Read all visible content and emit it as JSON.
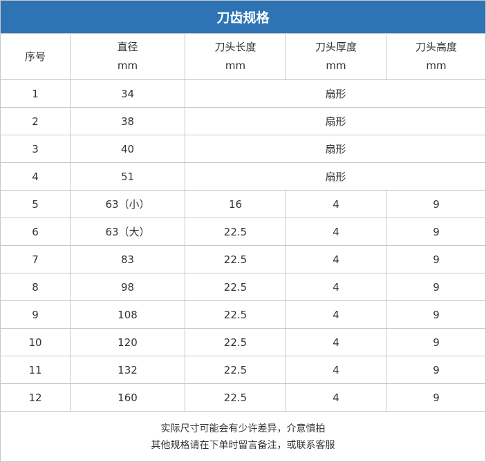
{
  "title": "刀齿规格",
  "headers": [
    [
      "序号",
      ""
    ],
    [
      "直径",
      "mm"
    ],
    [
      "刀头长度",
      "mm"
    ],
    [
      "刀头厚度",
      "mm"
    ],
    [
      "刀头高度",
      "mm"
    ]
  ],
  "rows": [
    [
      "1",
      "34",
      "扇形"
    ],
    [
      "2",
      "38",
      "扇形"
    ],
    [
      "3",
      "40",
      "扇形"
    ],
    [
      "4",
      "51",
      "扇形"
    ],
    [
      "5",
      "63（小）",
      "16",
      "4",
      "9"
    ],
    [
      "6",
      "63（大）",
      "22.5",
      "4",
      "9"
    ],
    [
      "7",
      "83",
      "22.5",
      "4",
      "9"
    ],
    [
      "8",
      "98",
      "22.5",
      "4",
      "9"
    ],
    [
      "9",
      "108",
      "22.5",
      "4",
      "9"
    ],
    [
      "10",
      "120",
      "22.5",
      "4",
      "9"
    ],
    [
      "11",
      "132",
      "22.5",
      "4",
      "9"
    ],
    [
      "12",
      "160",
      "22.5",
      "4",
      "9"
    ]
  ],
  "footer": [
    "实际尺寸可能会有少许差异，介意慎拍",
    "其他规格请在下单时留言备注，或联系客服"
  ],
  "colors": {
    "header": "#2e74b5",
    "border": "#c8c8c8"
  }
}
